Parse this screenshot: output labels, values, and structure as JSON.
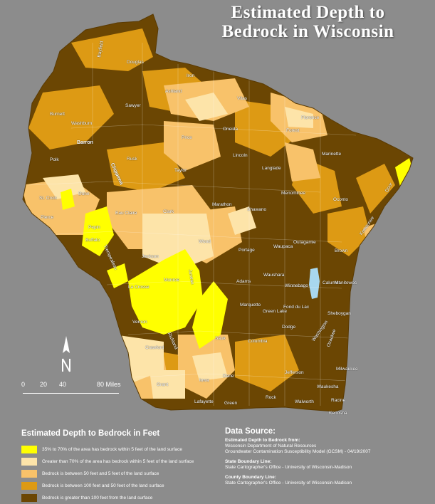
{
  "title": {
    "line1": "Estimated Depth to",
    "line2": "Bedrock in Wisconsin"
  },
  "colors": {
    "cat1": "#ffff00",
    "cat2": "#fde4a9",
    "cat3": "#f8c26a",
    "cat4": "#dd9a14",
    "cat5": "#6b4603",
    "lake": "#a8d7ee",
    "background": "#8c8c8c"
  },
  "counties": [
    "Douglas",
    "Bayfield",
    "Iron",
    "Ashland",
    "Vilas",
    "Sawyer",
    "Burnett",
    "Washburn",
    "Florence",
    "Forest",
    "Price",
    "Oneida",
    "Barron",
    "Marinette",
    "Rusk",
    "Lincoln",
    "Polk",
    "Taylor",
    "Langlade",
    "Chippewa",
    "Door",
    "St. Croix",
    "Dunn",
    "Marathon",
    "Menominee",
    "Oconto",
    "Eau Claire",
    "Shawano",
    "Pierce",
    "Clark",
    "Pepin",
    "Kewaunee",
    "Outagamie",
    "Wood",
    "Buffalo",
    "Brown",
    "Waupaca",
    "Portage",
    "Trempealeau",
    "Jackson",
    "Waushara",
    "Adams",
    "Winnebago",
    "Calumet",
    "Manitowoc",
    "La Crosse",
    "Monroe",
    "Juneau",
    "Marquette",
    "Green Lake",
    "Fond du Lac",
    "Sheboygan",
    "Vernon",
    "Columbia",
    "Richland",
    "Sauk",
    "Dodge",
    "Ozaukee",
    "Washington",
    "Crawford",
    "Dane",
    "Jefferson",
    "Waukesha",
    "Milwaukee",
    "Iowa",
    "Grant",
    "Lafayette",
    "Green",
    "Rock",
    "Walworth",
    "Racine",
    "Kenosha"
  ],
  "scale_bar": {
    "ticks": [
      "0",
      "20",
      "40",
      "80 Miles"
    ]
  },
  "legend": {
    "title": "Estimated Depth to Bedrock in Feet",
    "items": [
      {
        "label": "35% to 70% of the area has bedrock within 5 feet of the land surface"
      },
      {
        "label": "Greater than 70% of the area has bedrock within 5 feet of the land surface"
      },
      {
        "label": "Bedrock is between 50 feet and 5 feet of the land surface"
      },
      {
        "label": "Bedrock is between 100 feet and 50 feet of the land surface"
      },
      {
        "label": "Bedrock is greater than 100 feet from the land surface"
      }
    ]
  },
  "data_source": {
    "title": "Data Source:",
    "blocks": [
      {
        "heading": "Estimated Depth to Bedrock from:",
        "lines": [
          "Wisconsin Department of Natural Resources",
          "Groundwater Contamination Susceptibility Model (GCSM) - 04/19/2007"
        ]
      },
      {
        "heading": "State Boundary Line:",
        "lines": [
          "State Cartographer's Office - University of Wisconsin-Madison"
        ]
      },
      {
        "heading": "County Boundary Line:",
        "lines": [
          "State Cartographer's Office - University of Wisconsin-Madison"
        ]
      }
    ]
  }
}
